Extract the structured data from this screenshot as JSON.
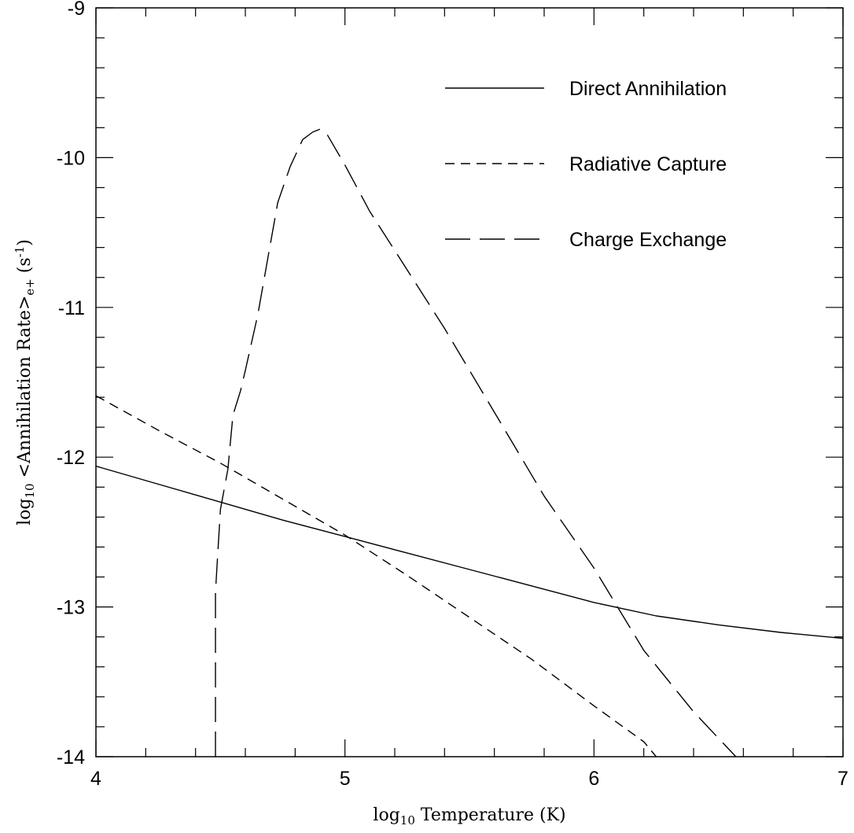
{
  "chart_data": {
    "type": "line",
    "xlabel": {
      "prefix": "log",
      "sub": "10",
      "rest": " Temperature (K)"
    },
    "ylabel": {
      "prefix": "log",
      "sub": "10",
      "mid": " <Annihilation Rate>",
      "sub2": "e+",
      "rest": " (s",
      "sup": "-1",
      "end": ")"
    },
    "xlim": [
      4,
      7
    ],
    "ylim": [
      -14,
      -9
    ],
    "x_ticks": [
      4,
      5,
      6,
      7
    ],
    "x_tick_labels": [
      "4",
      "5",
      "6",
      "7"
    ],
    "y_ticks": [
      -14,
      -13,
      -12,
      -11,
      -10,
      -9
    ],
    "y_tick_labels": [
      "-14",
      "-13",
      "-12",
      "-11",
      "-10",
      "-9"
    ],
    "grid": false,
    "legend_position": "top-right",
    "series": [
      {
        "name": "Direct Annihilation",
        "dash": "solid",
        "x": [
          4.0,
          4.25,
          4.5,
          4.75,
          5.0,
          5.25,
          5.5,
          5.75,
          6.0,
          6.25,
          6.5,
          6.75,
          7.0
        ],
        "y": [
          -12.06,
          -12.18,
          -12.3,
          -12.42,
          -12.53,
          -12.64,
          -12.75,
          -12.86,
          -12.97,
          -13.06,
          -13.12,
          -13.17,
          -13.21
        ]
      },
      {
        "name": "Radiative Capture",
        "dash": "short",
        "x": [
          4.0,
          4.25,
          4.5,
          4.75,
          5.0,
          5.25,
          5.5,
          5.75,
          6.0,
          6.2,
          6.25
        ],
        "y": [
          -11.59,
          -11.82,
          -12.04,
          -12.28,
          -12.52,
          -12.79,
          -13.07,
          -13.35,
          -13.66,
          -13.9,
          -14.0
        ]
      },
      {
        "name": "Charge Exchange",
        "dash": "long",
        "x": [
          4.48,
          4.48,
          4.5,
          4.53,
          4.55,
          4.58,
          4.6,
          4.65,
          4.7,
          4.73,
          4.78,
          4.83,
          4.87,
          4.9,
          4.93,
          5.0,
          5.1,
          5.2,
          5.4,
          5.6,
          5.8,
          6.0,
          6.2,
          6.4,
          6.57
        ],
        "y": [
          -14.0,
          -12.9,
          -12.35,
          -12.08,
          -11.72,
          -11.56,
          -11.42,
          -11.05,
          -10.58,
          -10.3,
          -10.06,
          -9.88,
          -9.83,
          -9.81,
          -9.85,
          -10.05,
          -10.36,
          -10.62,
          -11.14,
          -11.7,
          -12.26,
          -12.74,
          -13.29,
          -13.7,
          -14.0
        ]
      }
    ]
  }
}
